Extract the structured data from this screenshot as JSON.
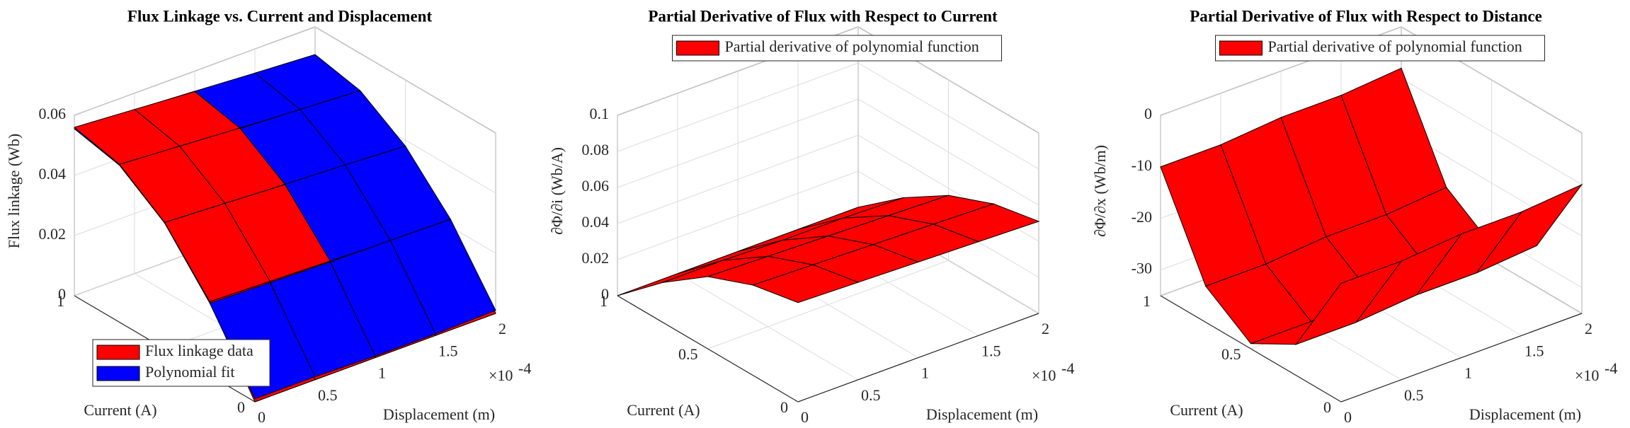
{
  "chart_data": [
    {
      "type": "surface",
      "title": "Flux Linkage vs. Current and Displacement",
      "xlabel": "Displacement (m)",
      "ylabel": "Current (A)",
      "zlabel": "Flux linkage (Wb)",
      "x": [
        0,
        0.5,
        1,
        1.5,
        2
      ],
      "y": [
        0,
        0.25,
        0.5,
        0.75,
        1
      ],
      "series": [
        {
          "name": "Flux linkage data",
          "color": "#ff0000",
          "z": [
            [
              0,
              0,
              0,
              0,
              0
            ],
            [
              0.0245,
              0.0239,
              0.0233,
              0.0227,
              0.0221
            ],
            [
              0.042,
              0.041,
              0.0399,
              0.0389,
              0.0378
            ],
            [
              0.0525,
              0.0512,
              0.0499,
              0.0486,
              0.0473
            ],
            [
              0.056,
              0.0546,
              0.0532,
              0.0518,
              0.0504
            ]
          ]
        },
        {
          "name": "Polynomial fit",
          "color": "#0000ff",
          "z": [
            [
              0.001,
              0.001,
              0.0005,
              0.0005,
              0.001
            ],
            [
              0.024,
              0.0235,
              0.023,
              0.0228,
              0.0225
            ],
            [
              0.0418,
              0.0408,
              0.04,
              0.0391,
              0.038
            ],
            [
              0.0522,
              0.051,
              0.0497,
              0.0487,
              0.0476
            ],
            [
              0.0555,
              0.0545,
              0.0533,
              0.052,
              0.0508
            ]
          ]
        }
      ],
      "xlim": [
        0,
        2
      ],
      "ylim": [
        0,
        1
      ],
      "zlim": [
        0,
        0.06
      ],
      "xticks": [
        0,
        0.5,
        1,
        1.5,
        2
      ],
      "yticks": [
        0,
        0.5,
        1
      ],
      "zticks": [
        0,
        0.02,
        0.04,
        0.06
      ],
      "x_multiplier": "×10",
      "x_multiplier_exponent": "-4",
      "legend": "lower left",
      "grid": true
    },
    {
      "type": "surface",
      "title": "Partial Derivative of Flux with Respect to Current",
      "xlabel": "Displacement (m)",
      "ylabel": "Current (A)",
      "zlabel": "∂Φ/∂i (Wb/A)",
      "x": [
        0,
        0.5,
        1,
        1.5,
        2
      ],
      "y": [
        0,
        0.25,
        0.5,
        0.75,
        1
      ],
      "series": [
        {
          "name": "Partial derivative of polynomial function",
          "color": "#ff0000",
          "z": [
            [
              0.055,
              0.054,
              0.053,
              0.052,
              0.051
            ],
            [
              0.05,
              0.049,
              0.048,
              0.047,
              0.046
            ],
            [
              0.04,
              0.039,
              0.038,
              0.037,
              0.036
            ],
            [
              0.022,
              0.022,
              0.021,
              0.021,
              0.02
            ],
            [
              0,
              0,
              0,
              0,
              0
            ]
          ]
        }
      ],
      "xlim": [
        0,
        2
      ],
      "ylim": [
        0,
        1
      ],
      "zlim": [
        0,
        0.1
      ],
      "xticks": [
        0,
        0.5,
        1,
        1.5,
        2
      ],
      "yticks": [
        0,
        0.5,
        1
      ],
      "zticks": [
        0,
        0.02,
        0.04,
        0.06,
        0.08,
        0.1
      ],
      "x_multiplier": "×10",
      "x_multiplier_exponent": "-4",
      "legend": "upper center",
      "grid": true
    },
    {
      "type": "surface",
      "title": "Partial Derivative of Flux with Respect to Distance",
      "xlabel": "Displacement (m)",
      "ylabel": "Current (A)",
      "zlabel": "∂Φ/∂x (Wb/m)",
      "x": [
        0,
        0.5,
        1,
        1.5,
        2
      ],
      "y": [
        0,
        0.25,
        0.5,
        0.75,
        1
      ],
      "series": [
        {
          "name": "Partial derivative of polynomial function",
          "color": "#ff0000",
          "z": [
            [
              -12,
              -12,
              -11,
              -11,
              -10
            ],
            [
              -29,
              -29,
              -28,
              -28,
              -27
            ],
            [
              -34,
              -34,
              -33,
              -33,
              -32
            ],
            [
              -28,
              -28,
              -27,
              -27,
              -26
            ],
            [
              -10,
              -10,
              -9,
              -9,
              -8
            ]
          ]
        }
      ],
      "xlim": [
        0,
        2
      ],
      "ylim": [
        0,
        1
      ],
      "zlim": [
        -35,
        0
      ],
      "xticks": [
        0,
        0.5,
        1,
        1.5,
        2
      ],
      "yticks": [
        0,
        0.5,
        1
      ],
      "zticks": [
        -30,
        -20,
        -10,
        0
      ],
      "x_multiplier": "×10",
      "x_multiplier_exponent": "-4",
      "legend": "upper center",
      "grid": true
    }
  ]
}
